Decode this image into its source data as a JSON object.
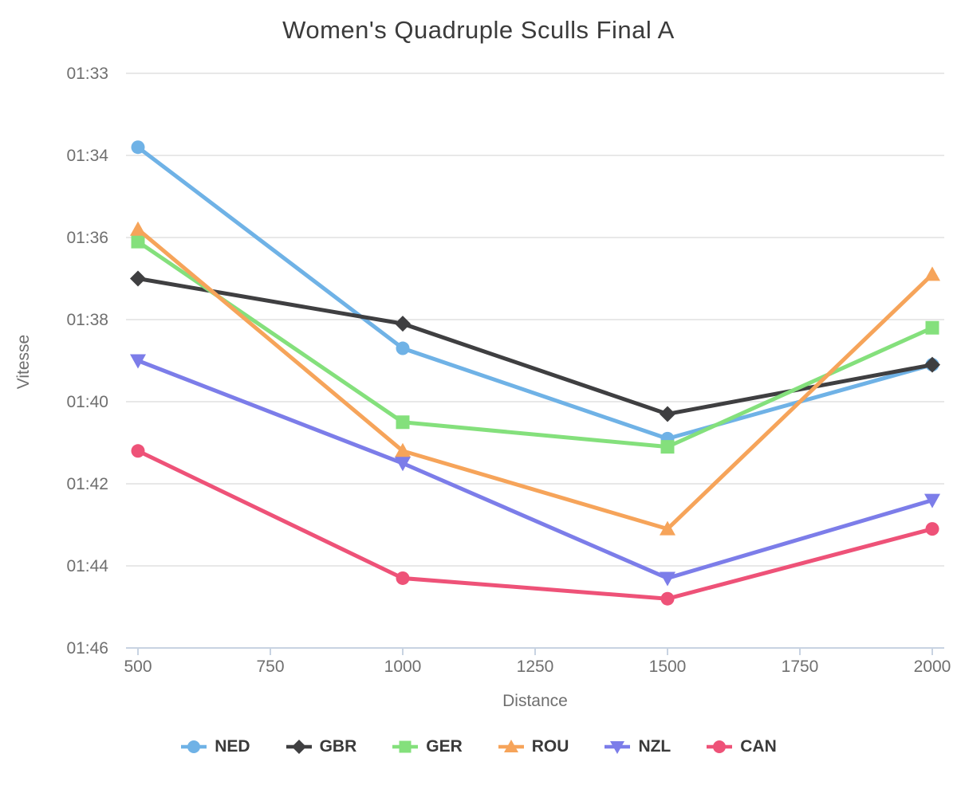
{
  "chart_data": {
    "type": "line",
    "title": "Women's Quadruple Sculls Final A",
    "xlabel": "Distance",
    "ylabel": "Vitesse",
    "grid": "horizontal",
    "legend_position": "bottom",
    "x": [
      500,
      1000,
      1500,
      2000
    ],
    "x_axis": {
      "tick_values": [
        500,
        750,
        1000,
        1250,
        1500,
        1750,
        2000
      ],
      "tick_labels": [
        "500",
        "750",
        "1000",
        "1250",
        "1500",
        "1750",
        "2000"
      ]
    },
    "y_axis": {
      "tick_labels": [
        "01:33",
        "01:34",
        "01:36",
        "01:38",
        "01:40",
        "01:42",
        "01:44",
        "01:46"
      ],
      "tick_values_seconds": [
        93,
        94,
        96,
        98,
        100,
        102,
        104,
        106
      ],
      "reversed": true
    },
    "series": [
      {
        "name": "NED",
        "color": "#6fb2e6",
        "marker": "circle",
        "values_seconds": [
          93.9,
          98.7,
          100.9,
          99.1
        ],
        "values_time": [
          "01:33.9",
          "01:38.7",
          "01:40.9",
          "01:39.1"
        ]
      },
      {
        "name": "GBR",
        "color": "#3f3f41",
        "marker": "diamond",
        "values_seconds": [
          97.0,
          98.1,
          100.3,
          99.1
        ],
        "values_time": [
          "01:37.0",
          "01:38.1",
          "01:40.3",
          "01:39.1"
        ]
      },
      {
        "name": "GER",
        "color": "#84e07c",
        "marker": "square",
        "values_seconds": [
          96.1,
          100.5,
          101.1,
          98.2
        ],
        "values_time": [
          "01:36.1",
          "01:40.5",
          "01:41.1",
          "01:38.2"
        ]
      },
      {
        "name": "ROU",
        "color": "#f6a45a",
        "marker": "triangle-up",
        "values_seconds": [
          95.8,
          101.2,
          103.1,
          96.9
        ],
        "values_time": [
          "01:35.8",
          "01:41.2",
          "01:43.1",
          "01:36.9"
        ]
      },
      {
        "name": "NZL",
        "color": "#7c7de9",
        "marker": "triangle-down",
        "values_seconds": [
          99.0,
          101.5,
          104.3,
          102.4
        ],
        "values_time": [
          "01:39.0",
          "01:41.5",
          "01:44.3",
          "01:42.4"
        ]
      },
      {
        "name": "CAN",
        "color": "#ee5278",
        "marker": "circle",
        "values_seconds": [
          101.2,
          104.3,
          104.8,
          103.1
        ],
        "values_time": [
          "01:41.2",
          "01:44.3",
          "01:44.8",
          "01:43.1"
        ]
      }
    ],
    "colors": {
      "title_text": "#3b3b3b",
      "axis_text": "#6f6f6f",
      "gridline": "#e8e8e8",
      "axis_line": "#c8d3e2",
      "legend_text": "#3a3a3a",
      "background": "#ffffff"
    }
  }
}
